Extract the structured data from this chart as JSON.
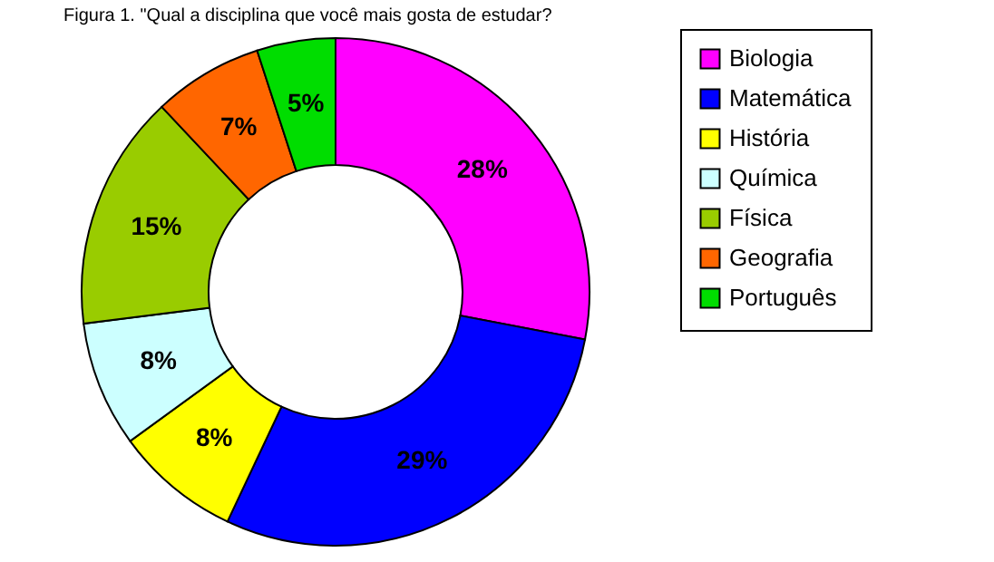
{
  "chart_data": {
    "type": "donut",
    "title": "Figura 1. \"Qual a disciplina que você mais gosta de estudar?",
    "categories": [
      "Biologia",
      "Matemática",
      "História",
      "Química",
      "Física",
      "Geografia",
      "Português"
    ],
    "values": [
      28,
      29,
      8,
      8,
      15,
      7,
      5
    ],
    "colors": [
      "#ff00ff",
      "#0000ff",
      "#ffff00",
      "#ccffff",
      "#99cc00",
      "#ff6600",
      "#00dd00"
    ],
    "value_labels": [
      "28%",
      "29%",
      "8%",
      "8%",
      "15%",
      "7%",
      "5%"
    ],
    "legend": "right"
  }
}
